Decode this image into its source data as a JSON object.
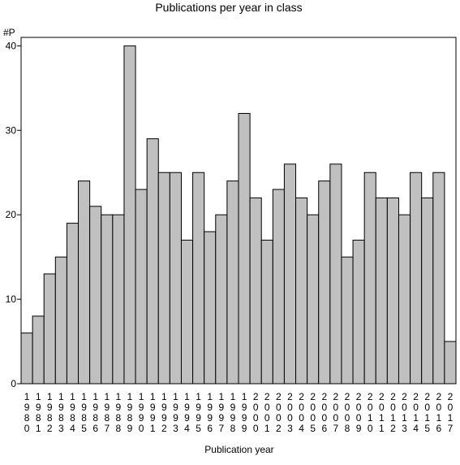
{
  "chart_data": {
    "type": "bar",
    "title": "Publications per year in class",
    "ylabel": "#P",
    "xlabel": "Publication year",
    "ylim": [
      0,
      41
    ],
    "yticks": [
      0,
      10,
      20,
      30,
      40
    ],
    "grid": false,
    "bar_color": "#c0c0c0",
    "categories": [
      "1980",
      "1981",
      "1982",
      "1983",
      "1984",
      "1985",
      "1986",
      "1987",
      "1988",
      "1989",
      "1990",
      "1991",
      "1992",
      "1993",
      "1994",
      "1995",
      "1996",
      "1997",
      "1998",
      "1999",
      "2000",
      "2001",
      "2002",
      "2003",
      "2004",
      "2005",
      "2006",
      "2007",
      "2008",
      "2009",
      "2010",
      "2011",
      "2012",
      "2013",
      "2014",
      "2015",
      "2016",
      "2017"
    ],
    "values": [
      6,
      8,
      13,
      15,
      19,
      24,
      21,
      20,
      20,
      40,
      23,
      29,
      25,
      25,
      17,
      25,
      18,
      20,
      24,
      32,
      22,
      17,
      23,
      26,
      22,
      20,
      24,
      26,
      15,
      17,
      25,
      22,
      22,
      20,
      25,
      22,
      25,
      5
    ]
  }
}
